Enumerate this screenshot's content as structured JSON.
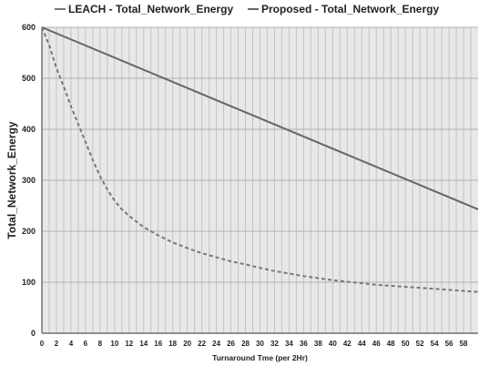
{
  "chart_data": {
    "type": "line",
    "title": "",
    "xlabel": "Turnaround Tme (per 2Hr)",
    "ylabel": "Total_Network_Energy",
    "xlim": [
      0,
      60
    ],
    "ylim": [
      0,
      600
    ],
    "x_ticks": [
      0,
      2,
      4,
      6,
      8,
      10,
      12,
      14,
      16,
      18,
      20,
      22,
      24,
      26,
      28,
      30,
      32,
      34,
      36,
      38,
      40,
      42,
      44,
      46,
      48,
      50,
      52,
      54,
      56,
      58
    ],
    "y_ticks": [
      0,
      100,
      200,
      300,
      400,
      500,
      600
    ],
    "grid": true,
    "legend_position": "top",
    "series": [
      {
        "name": "LEACH - Total_Network_Energy",
        "style": "dashed",
        "color": "#777777",
        "x": [
          0,
          1,
          2,
          3,
          4,
          5,
          6,
          7,
          8,
          9,
          10,
          11,
          12,
          14,
          16,
          18,
          20,
          22,
          24,
          26,
          28,
          30,
          32,
          34,
          36,
          38,
          40,
          42,
          44,
          46,
          48,
          50,
          52,
          54,
          56,
          58,
          60
        ],
        "values": [
          600,
          565,
          520,
          484,
          445,
          410,
          375,
          340,
          308,
          282,
          260,
          243,
          230,
          208,
          192,
          178,
          167,
          157,
          149,
          141,
          135,
          128,
          122,
          117,
          112,
          108,
          104,
          101,
          98,
          95,
          93,
          91,
          89,
          87,
          85,
          83,
          81
        ]
      },
      {
        "name": "Proposed - Total_Network_Energy",
        "style": "solid",
        "color": "#666666",
        "x": [
          0,
          60
        ],
        "values": [
          600,
          243
        ]
      }
    ]
  }
}
